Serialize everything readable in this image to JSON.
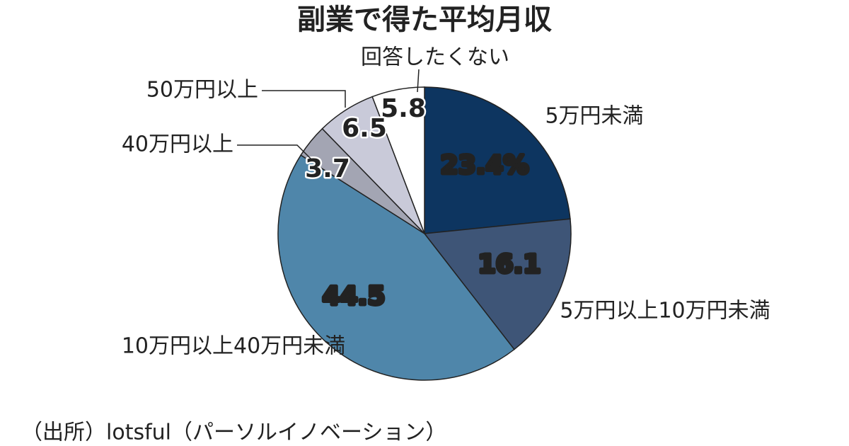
{
  "chart_data": {
    "type": "pie",
    "title": "副業で得た平均月収",
    "categories": [
      "5万円未満",
      "5万円以上10万円未満",
      "10万円以上40万円未満",
      "40万円以上",
      "50万円以上",
      "回答したくない"
    ],
    "values": [
      23.4,
      16.1,
      44.5,
      3.7,
      6.5,
      5.8
    ],
    "value_labels": [
      "23.4%",
      "16.1",
      "44.5",
      "3.7",
      "6.5",
      "5.8"
    ],
    "colors": [
      "#0d3560",
      "#3e5577",
      "#4f86aa",
      "#a3a5b3",
      "#c9cad9",
      "#ffffff"
    ],
    "source": "（出所）lotsful（パーソルイノベーション）"
  }
}
